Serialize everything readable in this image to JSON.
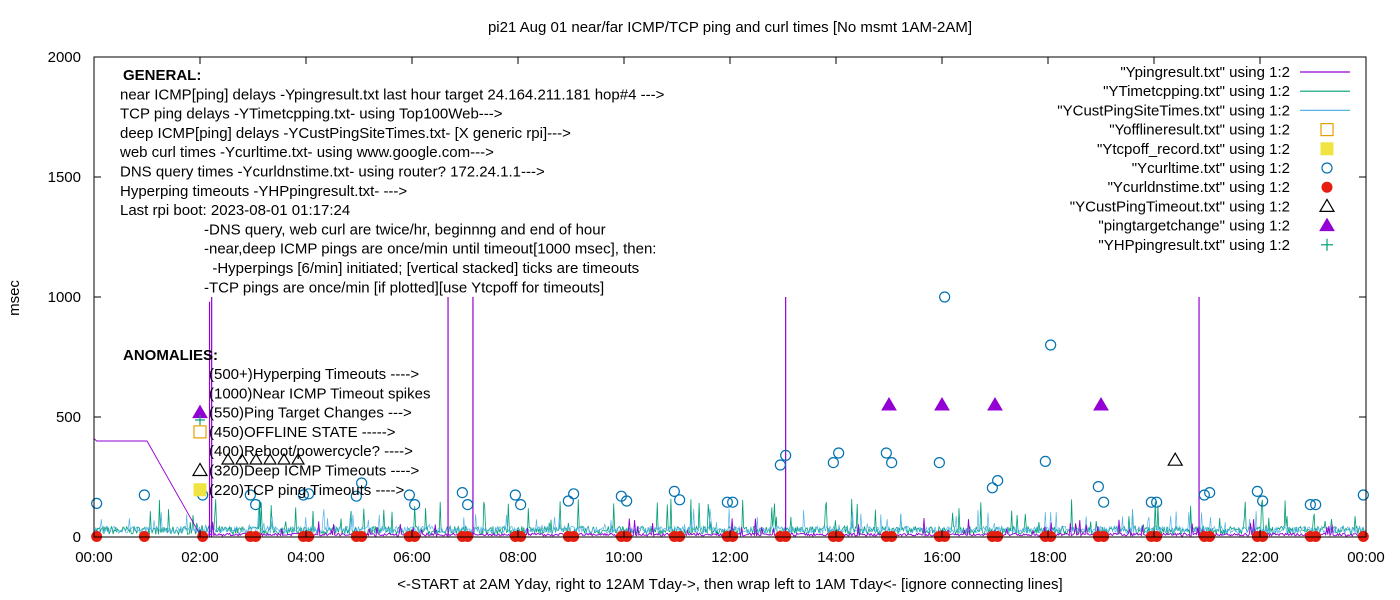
{
  "chart_data": {
    "type": "line",
    "title": "pi21 Aug 01  near/far ICMP/TCP ping and curl times [No msmt 1AM-2AM]",
    "xlabel": "<-START at 2AM Yday, right to 12AM Tday->, then wrap left to 1AM Tday<- [ignore connecting lines]",
    "ylabel": "msec",
    "xlim": [
      0,
      24
    ],
    "ylim": [
      0,
      2000
    ],
    "x_ticks": [
      {
        "v": 0,
        "label": "00:00"
      },
      {
        "v": 2,
        "label": "02:00"
      },
      {
        "v": 4,
        "label": "04:00"
      },
      {
        "v": 6,
        "label": "06:00"
      },
      {
        "v": 8,
        "label": "08:00"
      },
      {
        "v": 10,
        "label": "10:00"
      },
      {
        "v": 12,
        "label": "12:00"
      },
      {
        "v": 14,
        "label": "14:00"
      },
      {
        "v": 16,
        "label": "16:00"
      },
      {
        "v": 18,
        "label": "18:00"
      },
      {
        "v": 20,
        "label": "20:00"
      },
      {
        "v": 22,
        "label": "22:00"
      },
      {
        "v": 24,
        "label": "00:00"
      }
    ],
    "y_ticks": [
      {
        "v": 0,
        "label": "0"
      },
      {
        "v": 500,
        "label": "500"
      },
      {
        "v": 1000,
        "label": "1000"
      },
      {
        "v": 1500,
        "label": "1500"
      },
      {
        "v": 2000,
        "label": "2000"
      }
    ],
    "grid": false,
    "legend_position": "top-right",
    "notes_general": [
      {
        "text": "GENERAL:",
        "bold": true,
        "indent": 0
      },
      {
        "text": "near ICMP[ping] delays -Ypingresult.txt last hour target 24.164.211.181 hop#4 --->",
        "bold": false,
        "indent": 0
      },
      {
        "text": "TCP ping delays -YTimetcpping.txt- using Top100Web--->",
        "bold": false,
        "indent": 0
      },
      {
        "text": "deep ICMP[ping] delays -YCustPingSiteTimes.txt- [X generic rpi]--->",
        "bold": false,
        "indent": 0
      },
      {
        "text": "web curl times -Ycurltime.txt- using www.google.com--->",
        "bold": false,
        "indent": 0
      },
      {
        "text": "DNS query times -Ycurldnstime.txt- using router? 172.24.1.1--->",
        "bold": false,
        "indent": 0
      },
      {
        "text": "Hyperping timeouts -YHPpingresult.txt- --->",
        "bold": false,
        "indent": 0
      },
      {
        "text": "Last rpi boot: 2023-08-01 01:17:24",
        "bold": false,
        "indent": 0
      },
      {
        "text": "-DNS query, web curl are twice/hr, beginnng and end of hour",
        "bold": false,
        "indent": 1
      },
      {
        "text": "-near,deep ICMP pings are once/min until timeout[1000 msec], then:",
        "bold": false,
        "indent": 1
      },
      {
        "text": "  -Hyperpings [6/min] initiated; [vertical stacked] ticks are timeouts",
        "bold": false,
        "indent": 1
      },
      {
        "text": "-TCP pings are once/min [if plotted][use Ytcpoff for timeouts]",
        "bold": false,
        "indent": 1
      }
    ],
    "anomalies_title": "ANOMALIES:",
    "anomalies": [
      {
        "text": "(500+)Hyperping Timeouts ---->",
        "marker": "none"
      },
      {
        "text": "(1000)Near ICMP Timeout spikes",
        "marker": "none"
      },
      {
        "text": "(550)Ping Target Changes --->",
        "marker": "triangle-filled"
      },
      {
        "text": "(450)OFFLINE STATE ----->",
        "marker": "square-open"
      },
      {
        "text": "(400)Reboot/powercycle? ---->",
        "marker": "none"
      },
      {
        "text": "(320)Deep ICMP Timeouts ---->",
        "marker": "triangle-open"
      },
      {
        "text": "(220)TCP ping Timeouts ---->",
        "marker": "square-filled"
      }
    ],
    "series": [
      {
        "name": "\"Ypingresult.txt\" using 1:2",
        "style": "line",
        "color": "#9400d3"
      },
      {
        "name": "\"YTimetcpping.txt\" using 1:2",
        "style": "line",
        "color": "#009e73"
      },
      {
        "name": "\"YCustPingSiteTimes.txt\" using 1:2",
        "style": "line",
        "color": "#56b4e9"
      },
      {
        "name": "\"Yofflineresult.txt\" using 1:2",
        "style": "square-open",
        "color": "#e69f00"
      },
      {
        "name": "\"Ytcpoff_record.txt\" using 1:2",
        "style": "square-filled",
        "color": "#f0e442"
      },
      {
        "name": "\"Ycurltime.txt\" using 1:2",
        "style": "circle-open",
        "color": "#0072b2"
      },
      {
        "name": "\"Ycurldnstime.txt\" using 1:2",
        "style": "circle-filled",
        "color": "#e51e10"
      },
      {
        "name": "\"YCustPingTimeout.txt\" using 1:2",
        "style": "triangle-open",
        "color": "#000000"
      },
      {
        "name": "\"pingtargetchange\" using 1:2",
        "style": "triangle-filled",
        "color": "#9400d3"
      },
      {
        "name": "\"YHPpingresult.txt\" using 1:2",
        "style": "plus",
        "color": "#009e73"
      }
    ],
    "ping_spikes": [
      {
        "x": 2.18,
        "y": 980
      },
      {
        "x": 2.22,
        "y": 1000
      },
      {
        "x": 6.68,
        "y": 1000
      },
      {
        "x": 7.15,
        "y": 1000
      },
      {
        "x": 13.05,
        "y": 1000
      },
      {
        "x": 20.85,
        "y": 1000
      }
    ],
    "ping_reboot_segment": [
      [
        0,
        410
      ],
      [
        0.05,
        400
      ],
      [
        1.0,
        400
      ],
      [
        2.0,
        10
      ]
    ],
    "curl_times": [
      {
        "x": 0.05,
        "y": 140
      },
      {
        "x": 0.95,
        "y": 175
      },
      {
        "x": 2.05,
        "y": 175
      },
      {
        "x": 2.95,
        "y": 175
      },
      {
        "x": 3.05,
        "y": 135
      },
      {
        "x": 3.95,
        "y": 175
      },
      {
        "x": 4.05,
        "y": 180
      },
      {
        "x": 4.95,
        "y": 170
      },
      {
        "x": 5.05,
        "y": 225
      },
      {
        "x": 5.95,
        "y": 175
      },
      {
        "x": 6.05,
        "y": 135
      },
      {
        "x": 6.95,
        "y": 185
      },
      {
        "x": 7.05,
        "y": 135
      },
      {
        "x": 7.95,
        "y": 175
      },
      {
        "x": 8.05,
        "y": 135
      },
      {
        "x": 8.95,
        "y": 150
      },
      {
        "x": 9.05,
        "y": 180
      },
      {
        "x": 9.95,
        "y": 170
      },
      {
        "x": 10.05,
        "y": 150
      },
      {
        "x": 10.95,
        "y": 190
      },
      {
        "x": 11.05,
        "y": 155
      },
      {
        "x": 11.95,
        "y": 145
      },
      {
        "x": 12.05,
        "y": 145
      },
      {
        "x": 12.95,
        "y": 300
      },
      {
        "x": 13.05,
        "y": 340
      },
      {
        "x": 13.95,
        "y": 310
      },
      {
        "x": 14.05,
        "y": 350
      },
      {
        "x": 14.95,
        "y": 350
      },
      {
        "x": 15.05,
        "y": 310
      },
      {
        "x": 15.95,
        "y": 310
      },
      {
        "x": 16.05,
        "y": 1000
      },
      {
        "x": 16.95,
        "y": 205
      },
      {
        "x": 17.05,
        "y": 235
      },
      {
        "x": 17.95,
        "y": 315
      },
      {
        "x": 18.05,
        "y": 800
      },
      {
        "x": 18.95,
        "y": 210
      },
      {
        "x": 19.05,
        "y": 145
      },
      {
        "x": 19.95,
        "y": 145
      },
      {
        "x": 20.05,
        "y": 145
      },
      {
        "x": 20.95,
        "y": 175
      },
      {
        "x": 21.05,
        "y": 185
      },
      {
        "x": 21.95,
        "y": 190
      },
      {
        "x": 22.05,
        "y": 150
      },
      {
        "x": 22.95,
        "y": 135
      },
      {
        "x": 23.05,
        "y": 135
      },
      {
        "x": 23.95,
        "y": 175
      }
    ],
    "dns_times": [
      {
        "x": 0.05,
        "y": 2
      },
      {
        "x": 0.95,
        "y": 2
      },
      {
        "x": 2.05,
        "y": 2
      },
      {
        "x": 2.95,
        "y": 2
      },
      {
        "x": 3.05,
        "y": 2
      },
      {
        "x": 3.95,
        "y": 2
      },
      {
        "x": 4.05,
        "y": 2
      },
      {
        "x": 4.95,
        "y": 2
      },
      {
        "x": 5.05,
        "y": 2
      },
      {
        "x": 5.95,
        "y": 2
      },
      {
        "x": 6.05,
        "y": 2
      },
      {
        "x": 6.95,
        "y": 2
      },
      {
        "x": 7.05,
        "y": 2
      },
      {
        "x": 7.95,
        "y": 2
      },
      {
        "x": 8.05,
        "y": 2
      },
      {
        "x": 8.95,
        "y": 2
      },
      {
        "x": 9.05,
        "y": 2
      },
      {
        "x": 9.95,
        "y": 2
      },
      {
        "x": 10.05,
        "y": 2
      },
      {
        "x": 10.95,
        "y": 2
      },
      {
        "x": 11.05,
        "y": 2
      },
      {
        "x": 11.95,
        "y": 2
      },
      {
        "x": 12.05,
        "y": 2
      },
      {
        "x": 12.95,
        "y": 2
      },
      {
        "x": 13.05,
        "y": 2
      },
      {
        "x": 13.95,
        "y": 2
      },
      {
        "x": 14.05,
        "y": 2
      },
      {
        "x": 14.95,
        "y": 2
      },
      {
        "x": 15.05,
        "y": 2
      },
      {
        "x": 15.95,
        "y": 2
      },
      {
        "x": 16.05,
        "y": 2
      },
      {
        "x": 16.95,
        "y": 2
      },
      {
        "x": 17.05,
        "y": 2
      },
      {
        "x": 17.95,
        "y": 2
      },
      {
        "x": 18.05,
        "y": 2
      },
      {
        "x": 18.95,
        "y": 2
      },
      {
        "x": 19.05,
        "y": 2
      },
      {
        "x": 19.95,
        "y": 2
      },
      {
        "x": 20.05,
        "y": 2
      },
      {
        "x": 20.95,
        "y": 2
      },
      {
        "x": 21.05,
        "y": 2
      },
      {
        "x": 21.95,
        "y": 2
      },
      {
        "x": 22.05,
        "y": 2
      },
      {
        "x": 22.95,
        "y": 2
      },
      {
        "x": 23.05,
        "y": 2
      },
      {
        "x": 23.95,
        "y": 2
      }
    ],
    "ping_target_changes": [
      {
        "x": 15.0,
        "y": 550
      },
      {
        "x": 16.0,
        "y": 550
      },
      {
        "x": 17.0,
        "y": 550
      },
      {
        "x": 19.0,
        "y": 550
      }
    ],
    "cust_ping_timeouts": [
      {
        "x": 20.4,
        "y": 320
      }
    ]
  }
}
